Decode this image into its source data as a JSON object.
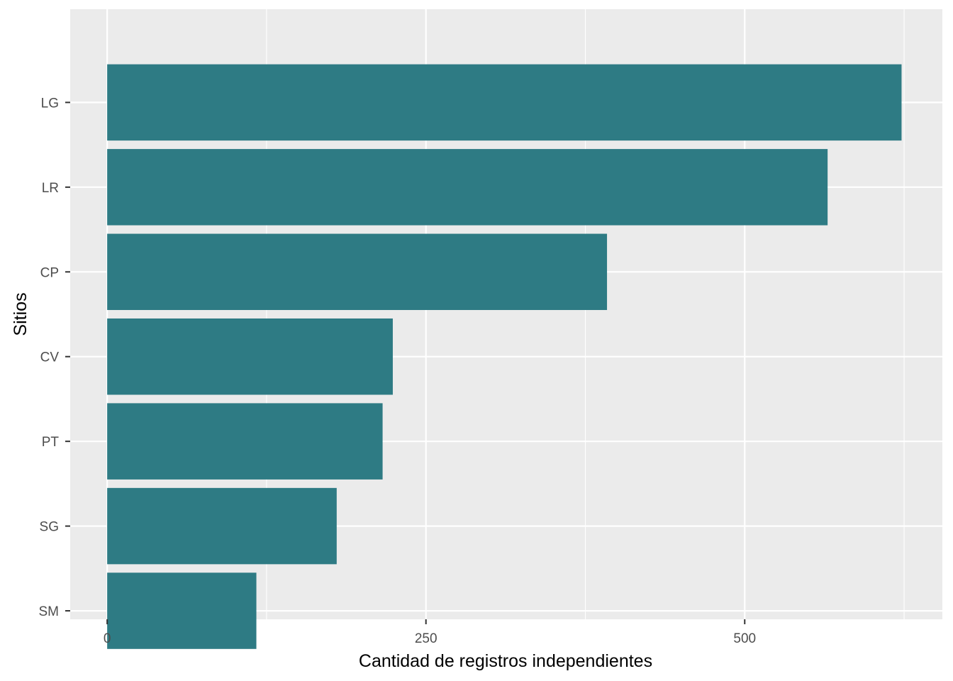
{
  "chart_data": {
    "type": "bar",
    "orientation": "horizontal",
    "categories": [
      "LG",
      "LR",
      "CP",
      "CV",
      "PT",
      "SG",
      "SM"
    ],
    "values": [
      623,
      565,
      392,
      224,
      216,
      180,
      117
    ],
    "xlabel": "Cantidad de registros independientes",
    "ylabel": "Sitios",
    "xlim": [
      -29,
      655
    ],
    "xticks": [
      0,
      250,
      500
    ],
    "xtick_labels": [
      "0",
      "250",
      "500"
    ],
    "grid": true,
    "colors": {
      "bar": "#2E7B84",
      "panel_background": "#EBEBEB",
      "grid_major": "#FFFFFF",
      "tick_text": "#4D4D4D"
    }
  }
}
